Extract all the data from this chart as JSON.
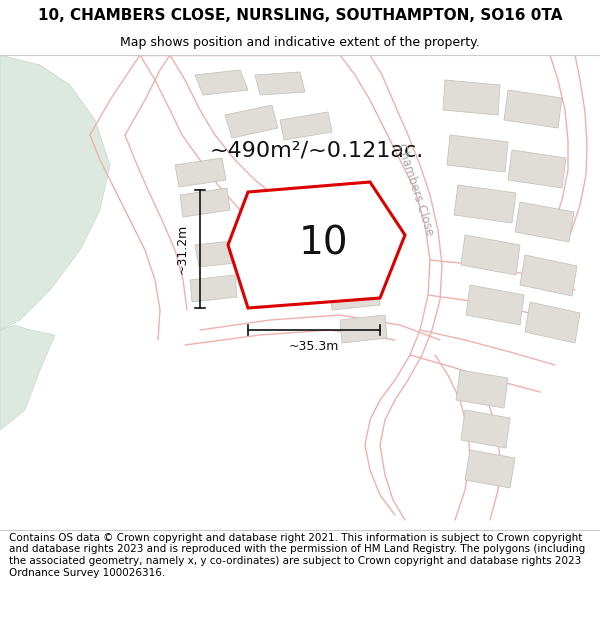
{
  "title_line1": "10, CHAMBERS CLOSE, NURSLING, SOUTHAMPTON, SO16 0TA",
  "title_line2": "Map shows position and indicative extent of the property.",
  "area_text": "~490m²/~0.121ac.",
  "label_number": "10",
  "dim_vertical": "~31.2m",
  "dim_horizontal": "~35.3m",
  "road_label": "Chambers Close",
  "footer_text": "Contains OS data © Crown copyright and database right 2021. This information is subject to Crown copyright and database rights 2023 and is reproduced with the permission of HM Land Registry. The polygons (including the associated geometry, namely x, y co-ordinates) are subject to Crown copyright and database rights 2023 Ordnance Survey 100026316.",
  "map_bg": "#ffffff",
  "title_bg": "#ffffff",
  "footer_bg": "#ffffff",
  "plot_fill": "#ffffff",
  "plot_edge": "#dd0000",
  "building_fill": "#e0ddd8",
  "building_edge": "#c8c4be",
  "road_fill": "#f5f0ee",
  "road_line": "#f0b0b0",
  "green_color": "#dce8e0",
  "green_edge": "#c8d8cc",
  "dim_color": "#111111",
  "label_color": "#111111",
  "area_color": "#111111",
  "road_label_color": "#aaaaaa",
  "title_fontsize": 11,
  "subtitle_fontsize": 9,
  "area_fontsize": 16,
  "number_fontsize": 28,
  "dim_fontsize": 9,
  "footer_fontsize": 7.5
}
